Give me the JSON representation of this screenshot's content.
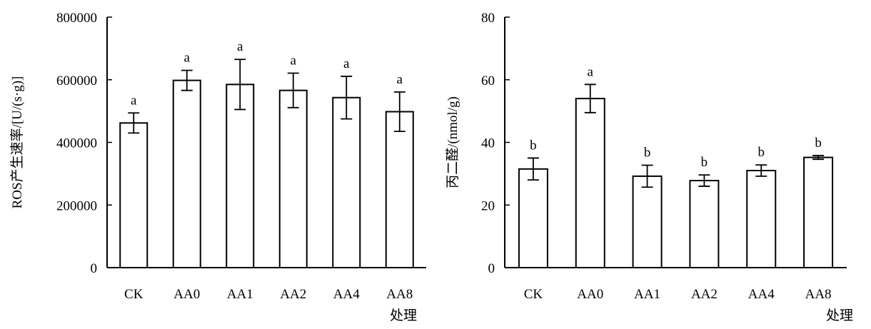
{
  "chart_data": [
    {
      "type": "bar",
      "categories": [
        "CK",
        "AA0",
        "AA1",
        "AA2",
        "AA4",
        "AA8"
      ],
      "values": [
        462000,
        598000,
        585000,
        566000,
        543000,
        498000
      ],
      "errors": [
        32000,
        32000,
        80000,
        55000,
        68000,
        63000
      ],
      "significance": [
        "a",
        "a",
        "a",
        "a",
        "a",
        "a"
      ],
      "ylabel": "ROS产生速率/[U/(s·g)]",
      "xlabel": "处理",
      "ylim": [
        0,
        800000
      ],
      "yticks": [
        "0",
        "200000",
        "400000",
        "600000",
        "800000"
      ],
      "bar_fill": "#ffffff",
      "bar_stroke": "#000000"
    },
    {
      "type": "bar",
      "categories": [
        "CK",
        "AA0",
        "AA1",
        "AA2",
        "AA4",
        "AA8"
      ],
      "values": [
        31.5,
        54,
        29.2,
        27.8,
        31,
        35.2
      ],
      "errors": [
        3.5,
        4.5,
        3.5,
        1.8,
        1.8,
        0.6
      ],
      "significance": [
        "b",
        "a",
        "b",
        "b",
        "b",
        "b"
      ],
      "ylabel": "丙二醛/(nmol/g)",
      "xlabel": "处理",
      "ylim": [
        0,
        80
      ],
      "yticks": [
        "0",
        "20",
        "40",
        "60",
        "80"
      ],
      "bar_fill": "#ffffff",
      "bar_stroke": "#000000"
    }
  ]
}
